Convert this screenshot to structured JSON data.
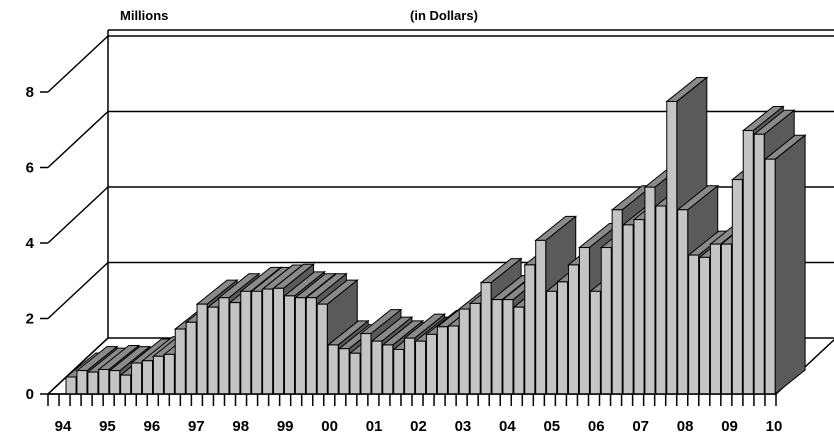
{
  "chart_data": {
    "type": "bar",
    "style": "3d",
    "title": "(in Dollars)",
    "ylabel": "Millions",
    "xlabel": "",
    "ylim": [
      0,
      8
    ],
    "y_ticks": [
      0,
      2,
      4,
      6,
      8
    ],
    "grid": true,
    "legend": "none",
    "colors": {
      "front": "#c4c4c4",
      "top": "#8a8a8a",
      "side": "#5a5a5a",
      "line": "#000000"
    },
    "x_tick_labels": [
      "94",
      "95",
      "96",
      "97",
      "98",
      "99",
      "00",
      "01",
      "02",
      "03",
      "04",
      "05",
      "06",
      "07",
      "08",
      "09",
      "10"
    ],
    "values": [
      0.45,
      0.62,
      0.58,
      0.65,
      0.62,
      0.5,
      0.82,
      0.88,
      1.0,
      1.05,
      1.72,
      1.9,
      2.38,
      2.3,
      2.55,
      2.42,
      2.72,
      2.72,
      2.78,
      2.8,
      2.6,
      2.55,
      2.55,
      2.38,
      1.3,
      1.2,
      1.08,
      1.6,
      1.4,
      1.3,
      1.18,
      1.48,
      1.4,
      1.58,
      1.78,
      1.8,
      2.25,
      2.4,
      2.95,
      2.5,
      2.5,
      2.3,
      3.42,
      4.07,
      2.72,
      2.97,
      3.42,
      3.88,
      2.72,
      3.88,
      4.88,
      4.48,
      4.62,
      5.48,
      4.98,
      7.75,
      4.88,
      3.68,
      3.62,
      3.97,
      3.97,
      5.68,
      6.98,
      6.88,
      6.22
    ]
  }
}
